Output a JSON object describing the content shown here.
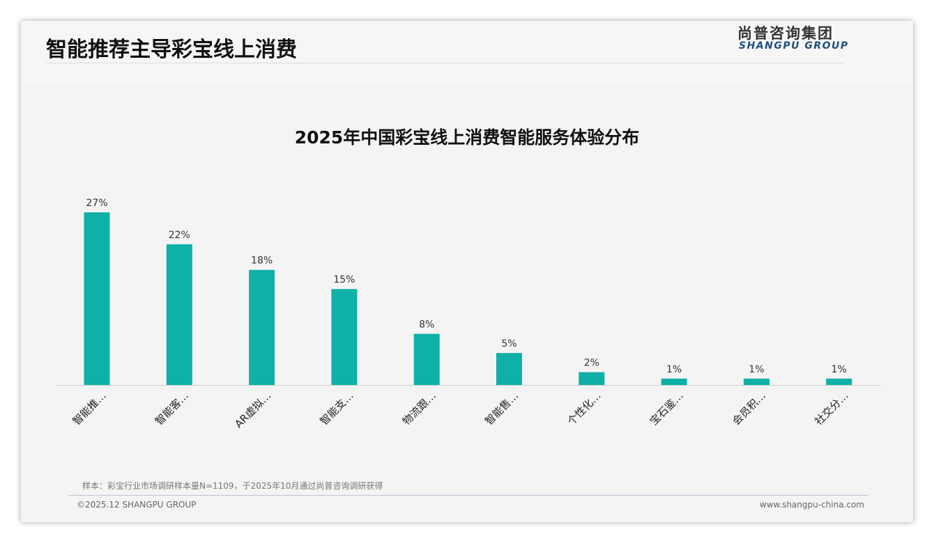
{
  "header": {
    "title": "智能推荐主导彩宝线上消费",
    "logo_cn": "尚普咨询集团",
    "logo_en": "SHANGPU GROUP"
  },
  "chart_data": {
    "type": "bar",
    "title": "2025年中国彩宝线上消费智能服务体验分布",
    "categories": [
      "智能推…",
      "智能客…",
      "AR虚拟…",
      "智能支…",
      "物流跟…",
      "智能售…",
      "个性化…",
      "宝石鉴…",
      "会员积…",
      "社交分…"
    ],
    "values": [
      27,
      22,
      18,
      15,
      8,
      5,
      2,
      1,
      1,
      1
    ],
    "data_labels": [
      "27%",
      "22%",
      "18%",
      "15%",
      "8%",
      "5%",
      "2%",
      "1%",
      "1%",
      "1%"
    ],
    "unit": "%",
    "ylim": [
      0,
      27
    ],
    "grid": false,
    "color": "#0fb0a7"
  },
  "footer": {
    "note": "样本：彩宝行业市场调研样本量N=1109，于2025年10月通过尚普咨询调研获得",
    "copyright": "©2025.12 SHANGPU GROUP",
    "url": "www.shangpu-china.com"
  }
}
